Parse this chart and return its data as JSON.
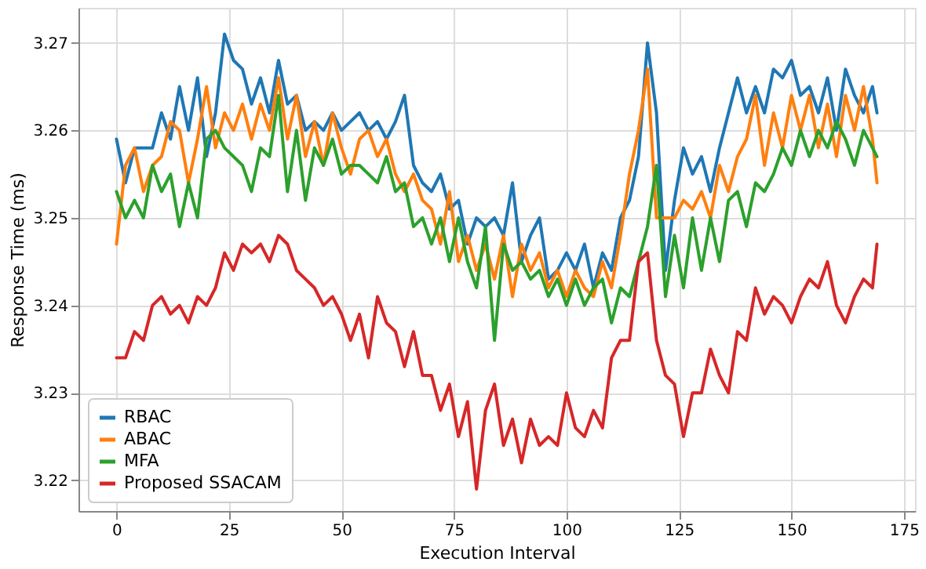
{
  "chart_data": {
    "type": "line",
    "xlabel": "Execution Interval",
    "ylabel": "Response Time (ms)",
    "x": [
      0,
      2,
      4,
      6,
      8,
      10,
      12,
      14,
      16,
      18,
      20,
      22,
      24,
      26,
      28,
      30,
      32,
      34,
      36,
      38,
      40,
      42,
      44,
      46,
      48,
      50,
      52,
      54,
      56,
      58,
      60,
      62,
      64,
      66,
      68,
      70,
      72,
      74,
      76,
      78,
      80,
      82,
      84,
      86,
      88,
      90,
      92,
      94,
      96,
      98,
      100,
      102,
      104,
      106,
      108,
      110,
      112,
      114,
      116,
      118,
      120,
      122,
      124,
      126,
      128,
      130,
      132,
      134,
      136,
      138,
      140,
      142,
      144,
      146,
      148,
      150,
      152,
      154,
      156,
      158,
      160,
      162,
      164,
      166,
      168,
      169
    ],
    "series": [
      {
        "name": "RBAC",
        "color": "#1f77b4",
        "values": [
          3.259,
          3.254,
          3.258,
          3.258,
          3.258,
          3.262,
          3.259,
          3.265,
          3.26,
          3.266,
          3.257,
          3.262,
          3.271,
          3.268,
          3.267,
          3.263,
          3.266,
          3.262,
          3.268,
          3.263,
          3.264,
          3.26,
          3.261,
          3.26,
          3.262,
          3.26,
          3.261,
          3.262,
          3.26,
          3.261,
          3.259,
          3.261,
          3.264,
          3.256,
          3.254,
          3.253,
          3.255,
          3.251,
          3.252,
          3.247,
          3.25,
          3.249,
          3.25,
          3.248,
          3.254,
          3.245,
          3.248,
          3.25,
          3.243,
          3.244,
          3.246,
          3.244,
          3.247,
          3.242,
          3.246,
          3.244,
          3.25,
          3.252,
          3.257,
          3.27,
          3.262,
          3.244,
          3.252,
          3.258,
          3.255,
          3.257,
          3.253,
          3.258,
          3.262,
          3.266,
          3.262,
          3.265,
          3.262,
          3.267,
          3.266,
          3.268,
          3.264,
          3.265,
          3.262,
          3.266,
          3.26,
          3.267,
          3.264,
          3.262,
          3.265,
          3.262
        ]
      },
      {
        "name": "ABAC",
        "color": "#ff7f0e",
        "values": [
          3.247,
          3.256,
          3.258,
          3.253,
          3.256,
          3.257,
          3.261,
          3.26,
          3.254,
          3.259,
          3.265,
          3.258,
          3.262,
          3.26,
          3.263,
          3.259,
          3.263,
          3.26,
          3.266,
          3.259,
          3.264,
          3.257,
          3.261,
          3.256,
          3.262,
          3.258,
          3.255,
          3.259,
          3.26,
          3.257,
          3.259,
          3.255,
          3.253,
          3.255,
          3.252,
          3.251,
          3.247,
          3.253,
          3.245,
          3.248,
          3.244,
          3.247,
          3.243,
          3.248,
          3.241,
          3.247,
          3.244,
          3.246,
          3.242,
          3.244,
          3.241,
          3.244,
          3.242,
          3.241,
          3.245,
          3.242,
          3.248,
          3.255,
          3.26,
          3.267,
          3.25,
          3.25,
          3.25,
          3.252,
          3.251,
          3.253,
          3.25,
          3.256,
          3.253,
          3.257,
          3.259,
          3.264,
          3.256,
          3.262,
          3.258,
          3.264,
          3.26,
          3.264,
          3.258,
          3.263,
          3.257,
          3.264,
          3.26,
          3.265,
          3.259,
          3.254
        ]
      },
      {
        "name": "MFA",
        "color": "#2ca02c",
        "values": [
          3.253,
          3.25,
          3.252,
          3.25,
          3.256,
          3.253,
          3.255,
          3.249,
          3.254,
          3.25,
          3.259,
          3.26,
          3.258,
          3.257,
          3.256,
          3.253,
          3.258,
          3.257,
          3.264,
          3.253,
          3.26,
          3.252,
          3.258,
          3.256,
          3.259,
          3.255,
          3.256,
          3.256,
          3.255,
          3.254,
          3.257,
          3.253,
          3.254,
          3.249,
          3.25,
          3.247,
          3.25,
          3.245,
          3.25,
          3.245,
          3.242,
          3.249,
          3.236,
          3.247,
          3.244,
          3.245,
          3.243,
          3.244,
          3.241,
          3.243,
          3.24,
          3.243,
          3.24,
          3.242,
          3.243,
          3.238,
          3.242,
          3.241,
          3.245,
          3.249,
          3.256,
          3.241,
          3.248,
          3.242,
          3.25,
          3.244,
          3.25,
          3.245,
          3.252,
          3.253,
          3.249,
          3.254,
          3.253,
          3.255,
          3.258,
          3.256,
          3.26,
          3.257,
          3.26,
          3.258,
          3.261,
          3.259,
          3.256,
          3.26,
          3.258,
          3.257
        ]
      },
      {
        "name": "Proposed SSACAM",
        "color": "#d62728",
        "values": [
          3.234,
          3.234,
          3.237,
          3.236,
          3.24,
          3.241,
          3.239,
          3.24,
          3.238,
          3.241,
          3.24,
          3.242,
          3.246,
          3.244,
          3.247,
          3.246,
          3.247,
          3.245,
          3.248,
          3.247,
          3.244,
          3.243,
          3.242,
          3.24,
          3.241,
          3.239,
          3.236,
          3.239,
          3.234,
          3.241,
          3.238,
          3.237,
          3.233,
          3.237,
          3.232,
          3.232,
          3.228,
          3.231,
          3.225,
          3.229,
          3.219,
          3.228,
          3.231,
          3.224,
          3.227,
          3.222,
          3.227,
          3.224,
          3.225,
          3.224,
          3.23,
          3.226,
          3.225,
          3.228,
          3.226,
          3.234,
          3.236,
          3.236,
          3.245,
          3.246,
          3.236,
          3.232,
          3.231,
          3.225,
          3.23,
          3.23,
          3.235,
          3.232,
          3.23,
          3.237,
          3.236,
          3.242,
          3.239,
          3.241,
          3.24,
          3.238,
          3.241,
          3.243,
          3.242,
          3.245,
          3.24,
          3.238,
          3.241,
          3.243,
          3.242,
          3.247
        ]
      }
    ],
    "xlim": [
      -8.45,
      177.45
    ],
    "ylim": [
      3.2165,
      3.274
    ],
    "xticks": [
      0,
      25,
      50,
      75,
      100,
      125,
      150,
      175
    ],
    "yticks": [
      3.22,
      3.23,
      3.24,
      3.25,
      3.26,
      3.27
    ],
    "grid": true,
    "legend": "bottom left",
    "line_style": "solid"
  }
}
